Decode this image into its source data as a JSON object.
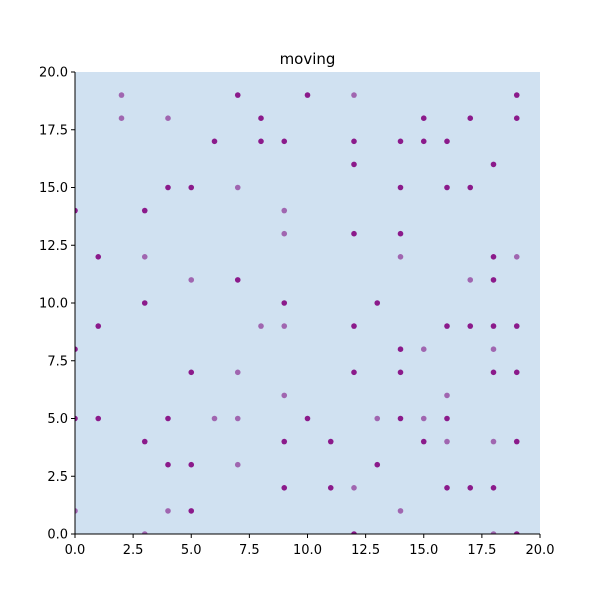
{
  "chart_data": {
    "type": "scatter",
    "title": "moving",
    "xlabel": "",
    "ylabel": "",
    "xlim": [
      0,
      20
    ],
    "ylim": [
      0,
      20
    ],
    "grid": false,
    "xticks": [
      "0.0",
      "2.5",
      "5.0",
      "7.5",
      "10.0",
      "12.5",
      "15.0",
      "17.5",
      "20.0"
    ],
    "yticks": [
      "0.0",
      "2.5",
      "5.0",
      "7.5",
      "10.0",
      "12.5",
      "15.0",
      "17.5",
      "20.0"
    ],
    "colors": {
      "background": "#d0e1f1",
      "point_dark": "#8b1a8b",
      "point_light": "#a066b0"
    },
    "series": [
      {
        "shade": "dark",
        "points": [
          [
            0,
            14
          ],
          [
            0,
            8
          ],
          [
            0,
            5
          ],
          [
            1,
            12
          ],
          [
            1,
            9
          ],
          [
            1,
            5
          ],
          [
            3,
            14
          ],
          [
            3,
            10
          ],
          [
            3,
            4
          ],
          [
            4,
            15
          ],
          [
            4,
            5
          ],
          [
            4,
            3
          ],
          [
            5,
            15
          ],
          [
            5,
            7
          ],
          [
            5,
            3
          ],
          [
            5,
            1
          ],
          [
            6,
            17
          ],
          [
            7,
            19
          ],
          [
            7,
            11
          ],
          [
            8,
            18
          ],
          [
            8,
            17
          ],
          [
            9,
            17
          ],
          [
            9,
            10
          ],
          [
            9,
            4
          ],
          [
            9,
            2
          ],
          [
            10,
            19
          ],
          [
            10,
            5
          ],
          [
            11,
            4
          ],
          [
            11,
            2
          ],
          [
            12,
            17
          ],
          [
            12,
            16
          ],
          [
            12,
            13
          ],
          [
            12,
            9
          ],
          [
            12,
            7
          ],
          [
            12,
            0
          ],
          [
            13,
            10
          ],
          [
            13,
            3
          ],
          [
            14,
            17
          ],
          [
            14,
            15
          ],
          [
            14,
            13
          ],
          [
            14,
            8
          ],
          [
            14,
            7
          ],
          [
            14,
            5
          ],
          [
            15,
            18
          ],
          [
            15,
            17
          ],
          [
            15,
            4
          ],
          [
            16,
            17
          ],
          [
            16,
            15
          ],
          [
            16,
            9
          ],
          [
            16,
            5
          ],
          [
            16,
            2
          ],
          [
            17,
            18
          ],
          [
            17,
            15
          ],
          [
            17,
            9
          ],
          [
            17,
            2
          ],
          [
            18,
            16
          ],
          [
            18,
            12
          ],
          [
            18,
            11
          ],
          [
            18,
            9
          ],
          [
            18,
            7
          ],
          [
            18,
            2
          ],
          [
            19,
            19
          ],
          [
            19,
            18
          ],
          [
            19,
            9
          ],
          [
            19,
            7
          ],
          [
            19,
            4
          ],
          [
            19,
            0
          ]
        ]
      },
      {
        "shade": "light",
        "points": [
          [
            0,
            1
          ],
          [
            2,
            19
          ],
          [
            2,
            18
          ],
          [
            3,
            12
          ],
          [
            3,
            0
          ],
          [
            4,
            18
          ],
          [
            4,
            1
          ],
          [
            5,
            11
          ],
          [
            6,
            5
          ],
          [
            7,
            15
          ],
          [
            7,
            7
          ],
          [
            7,
            5
          ],
          [
            7,
            3
          ],
          [
            8,
            9
          ],
          [
            9,
            14
          ],
          [
            9,
            13
          ],
          [
            9,
            9
          ],
          [
            9,
            6
          ],
          [
            12,
            19
          ],
          [
            12,
            2
          ],
          [
            13,
            5
          ],
          [
            14,
            12
          ],
          [
            14,
            1
          ],
          [
            15,
            8
          ],
          [
            15,
            5
          ],
          [
            16,
            6
          ],
          [
            16,
            4
          ],
          [
            17,
            11
          ],
          [
            18,
            8
          ],
          [
            18,
            4
          ],
          [
            18,
            0
          ],
          [
            19,
            12
          ]
        ]
      }
    ]
  }
}
